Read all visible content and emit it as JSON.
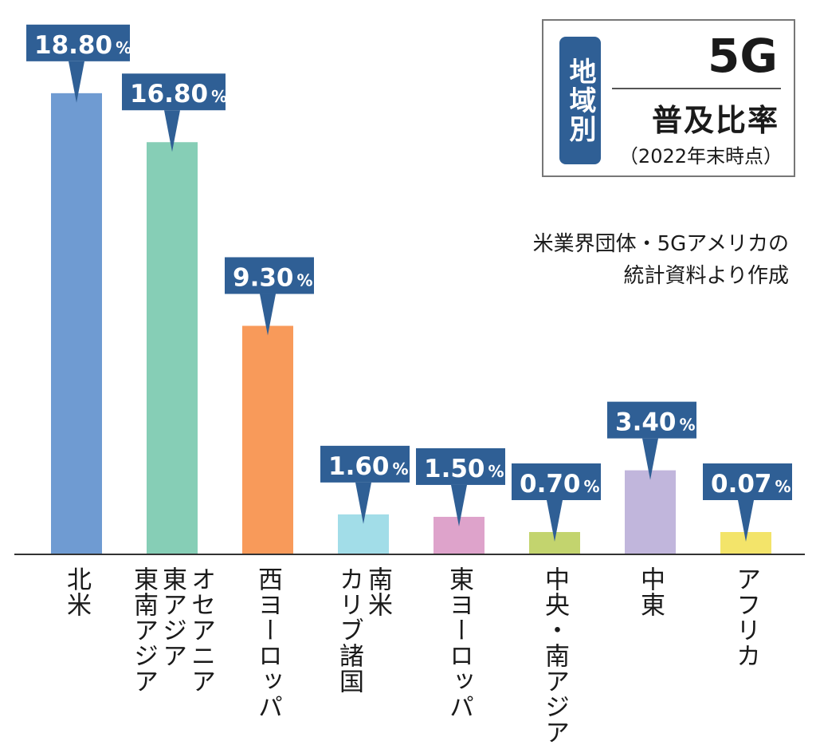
{
  "chart_data": {
    "type": "bar",
    "title": "普及比率",
    "categories": [
      "北米",
      "オセアニア 東アジア 東南アジア",
      "西ヨーロッパ",
      "南米 カリブ諸国",
      "東ヨーロッパ",
      "中央・南アジア",
      "中東",
      "アフリカ"
    ],
    "category_lines": [
      [
        "北米"
      ],
      [
        "オセアニア",
        "東アジア",
        "東南アジア"
      ],
      [
        "西ヨーロッパ"
      ],
      [
        "南米",
        "カリブ諸国"
      ],
      [
        "東ヨーロッパ"
      ],
      [
        "中央・南アジア"
      ],
      [
        "中東"
      ],
      [
        "アフリカ"
      ]
    ],
    "values": [
      18.8,
      16.8,
      9.3,
      1.6,
      1.5,
      0.7,
      3.4,
      0.07
    ],
    "value_labels": [
      "18.80",
      "16.80",
      "9.30",
      "1.60",
      "1.50",
      "0.70",
      "3.40",
      "0.07"
    ],
    "unit": "%",
    "colors": [
      "#6f9bd2",
      "#86ceb6",
      "#f89a5a",
      "#a2dde8",
      "#dea3cb",
      "#c3d46e",
      "#c1b6dc",
      "#f3e46a"
    ],
    "label_color": "#2f5f95",
    "ylim": [
      0,
      20
    ]
  },
  "legend": {
    "badge": "地域別",
    "tech": "5G",
    "title": "普及比率",
    "subtitle": "（2022年末時点）"
  },
  "source": {
    "line1": "米業界団体・5Gアメリカの",
    "line2": "統計資料より作成"
  }
}
